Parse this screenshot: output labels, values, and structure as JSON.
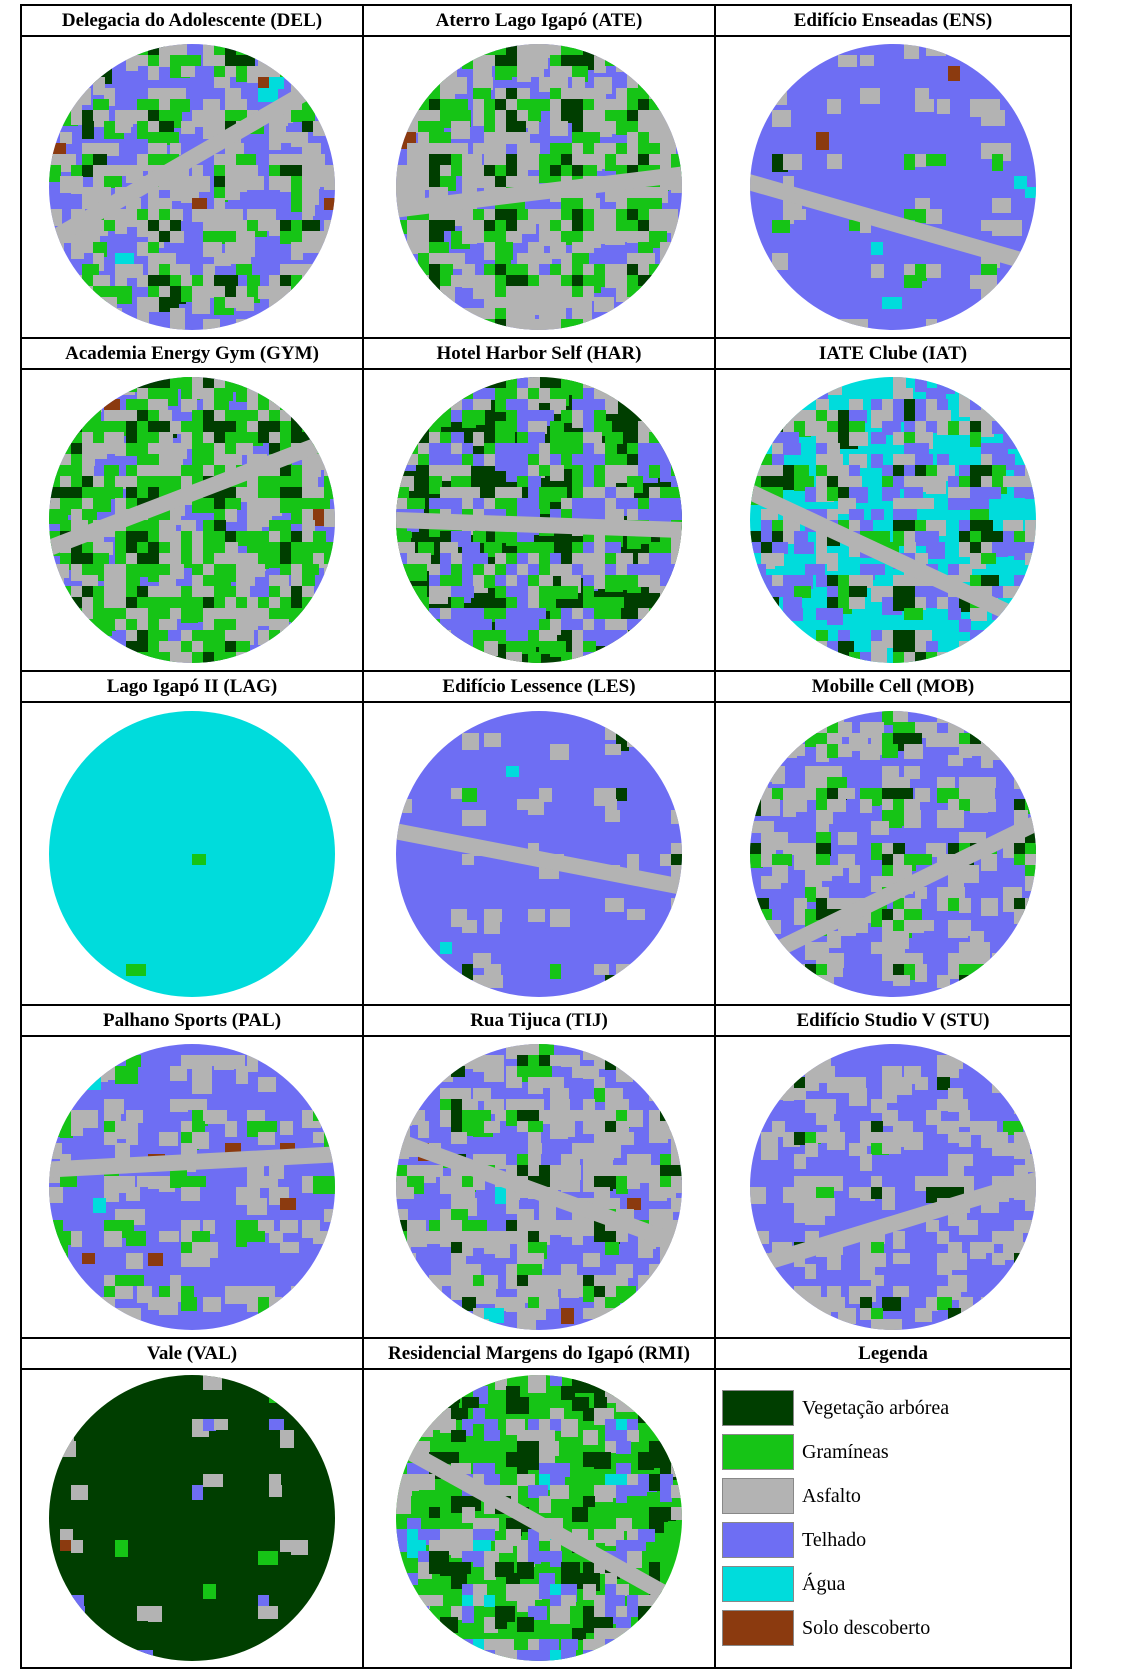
{
  "colors": {
    "tree": "#003e00",
    "grass": "#16c416",
    "asphalt": "#b3b3b3",
    "roof": "#6e6ef3",
    "water": "#00dcdc",
    "soil": "#8b3a0f",
    "white": "#ffffff"
  },
  "sites": [
    {
      "code": "DEL",
      "title": "Delegacia do Adolescente (DEL)",
      "mix": {
        "tree": 18,
        "grass": 12,
        "asphalt": 22,
        "roof": 40,
        "water": 1,
        "soil": 7
      }
    },
    {
      "code": "ATE",
      "title": "Aterro Lago Igapó (ATE)",
      "mix": {
        "tree": 22,
        "grass": 18,
        "asphalt": 24,
        "roof": 30,
        "water": 0,
        "soil": 6
      }
    },
    {
      "code": "ENS",
      "title": "Edifício Enseadas (ENS)",
      "mix": {
        "tree": 6,
        "grass": 8,
        "asphalt": 10,
        "roof": 66,
        "water": 3,
        "soil": 7
      }
    },
    {
      "code": "GYM",
      "title": "Academia Energy Gym (GYM)",
      "mix": {
        "tree": 26,
        "grass": 24,
        "asphalt": 18,
        "roof": 28,
        "water": 1,
        "soil": 3
      }
    },
    {
      "code": "HAR",
      "title": "Hotel Harbor Self (HAR)",
      "mix": {
        "tree": 38,
        "grass": 14,
        "asphalt": 10,
        "roof": 36,
        "water": 1,
        "soil": 1
      }
    },
    {
      "code": "IAT",
      "title": "IATE Clube (IAT)",
      "mix": {
        "tree": 22,
        "grass": 8,
        "asphalt": 14,
        "roof": 10,
        "water": 46,
        "soil": 0
      }
    },
    {
      "code": "LAG",
      "title": "Lago Igapó II (LAG)",
      "mix": {
        "tree": 2,
        "grass": 3,
        "asphalt": 0,
        "roof": 0,
        "water": 95,
        "soil": 0
      }
    },
    {
      "code": "LES",
      "title": "Edifício Lessence (LES)",
      "mix": {
        "tree": 8,
        "grass": 2,
        "asphalt": 14,
        "roof": 72,
        "water": 3,
        "soil": 1
      }
    },
    {
      "code": "MOB",
      "title": "Mobille Cell (MOB)",
      "mix": {
        "tree": 18,
        "grass": 10,
        "asphalt": 18,
        "roof": 52,
        "water": 1,
        "soil": 1
      }
    },
    {
      "code": "PAL",
      "title": "Palhano Sports (PAL)",
      "mix": {
        "tree": 6,
        "grass": 16,
        "asphalt": 14,
        "roof": 52,
        "water": 1,
        "soil": 11
      }
    },
    {
      "code": "TIJ",
      "title": "Rua Tijuca (TIJ)",
      "mix": {
        "tree": 20,
        "grass": 8,
        "asphalt": 24,
        "roof": 38,
        "water": 5,
        "soil": 5
      }
    },
    {
      "code": "STU",
      "title": "Edifício Studio V (STU)",
      "mix": {
        "tree": 12,
        "grass": 2,
        "asphalt": 26,
        "roof": 58,
        "water": 1,
        "soil": 1
      }
    },
    {
      "code": "VAL",
      "title": "Vale (VAL)",
      "mix": {
        "tree": 80,
        "grass": 1,
        "asphalt": 6,
        "roof": 9,
        "water": 0,
        "soil": 4
      }
    },
    {
      "code": "RMI",
      "title": "Residencial Margens do Igapó (RMI)",
      "mix": {
        "tree": 28,
        "grass": 30,
        "asphalt": 14,
        "roof": 16,
        "water": 12,
        "soil": 0
      }
    }
  ],
  "legend": {
    "title": "Legenda",
    "items": [
      {
        "key": "tree",
        "label": "Vegetação arbórea",
        "color": "#003e00"
      },
      {
        "key": "grass",
        "label": "Gramíneas",
        "color": "#16c416"
      },
      {
        "key": "asphalt",
        "label": "Asfalto",
        "color": "#b3b3b3"
      },
      {
        "key": "roof",
        "label": "Telhado",
        "color": "#6e6ef3"
      },
      {
        "key": "water",
        "label": "Água",
        "color": "#00dcdc"
      },
      {
        "key": "soil",
        "label": "Solo descoberto",
        "color": "#8b3a0f"
      }
    ]
  }
}
